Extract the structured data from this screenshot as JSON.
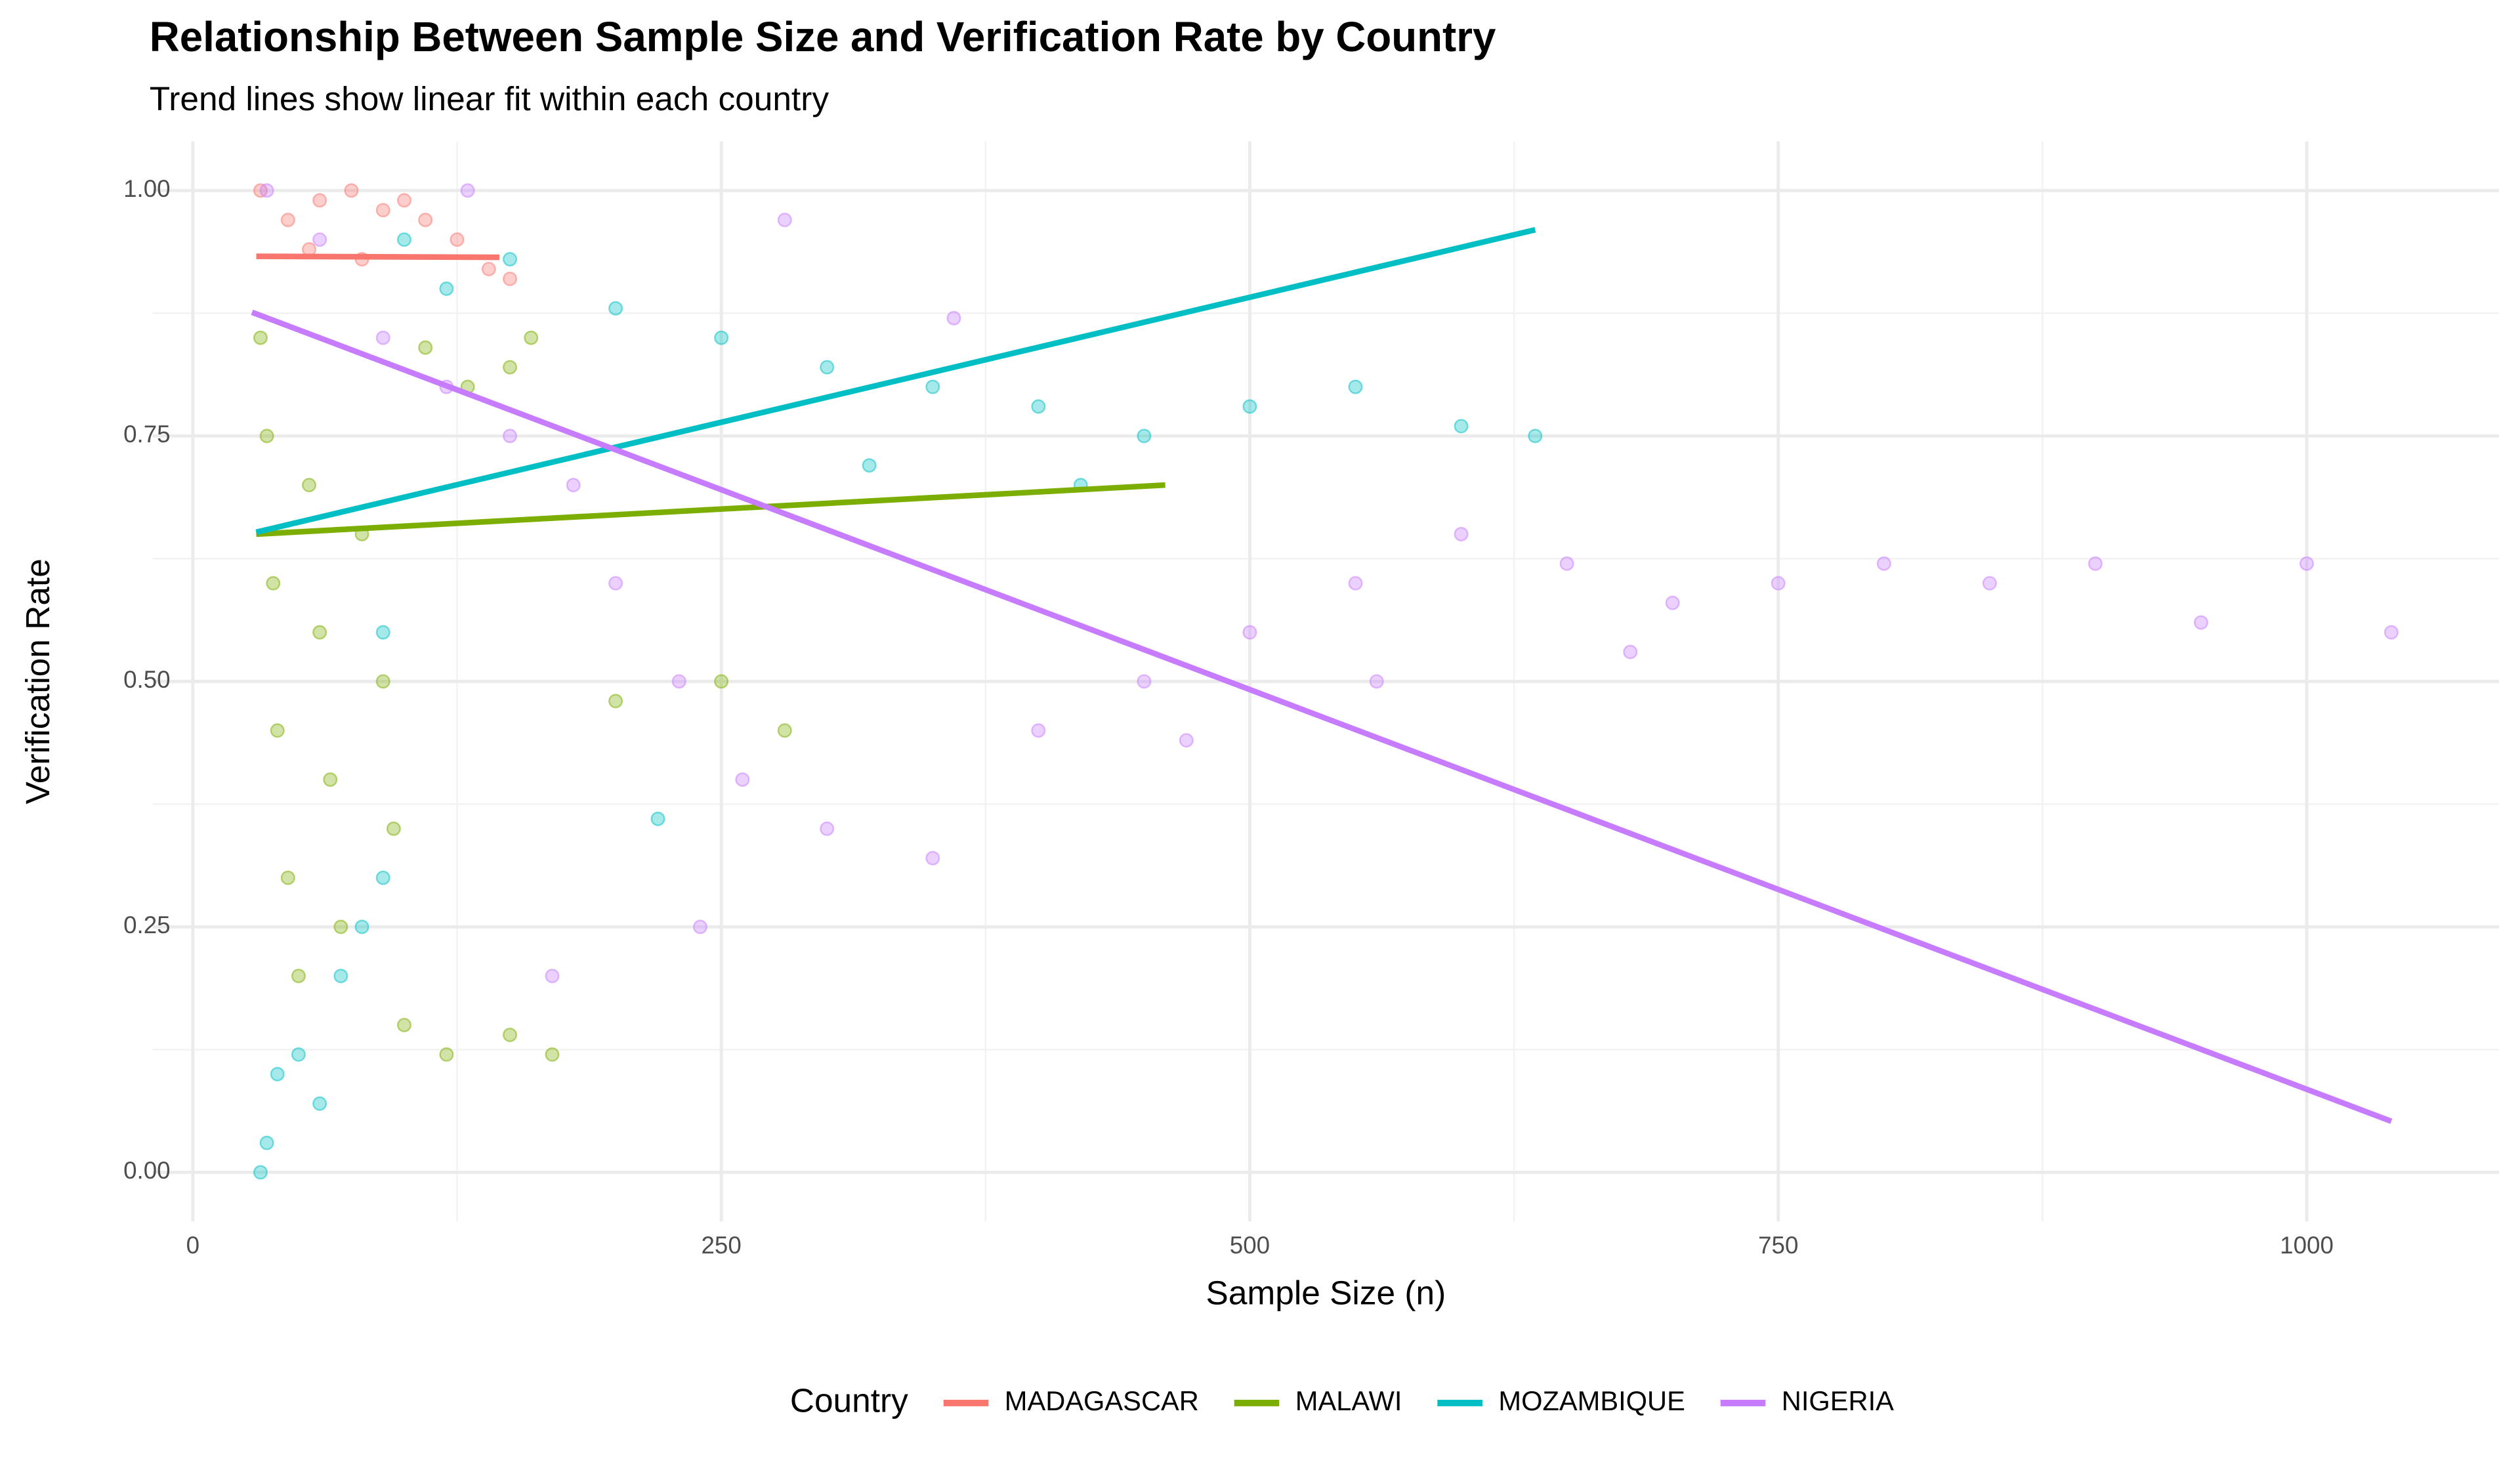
{
  "chart_data": {
    "type": "scatter",
    "title": "Relationship Between Sample Size and Verification Rate by Country",
    "subtitle": "Trend lines show linear fit within each country",
    "x_label": "Sample Size (n)",
    "y_label": "Verification Rate",
    "legend_title": "Country",
    "legend_position": "bottom",
    "grid": true,
    "xlim": [
      -19,
      1091
    ],
    "ylim": [
      -0.05,
      1.05
    ],
    "xticks": [
      0,
      250,
      500,
      750,
      1000
    ],
    "yticks": [
      {
        "value": 0,
        "label": "0.00"
      },
      {
        "value": 0.25,
        "label": "0.25"
      },
      {
        "value": 0.5,
        "label": "0.50"
      },
      {
        "value": 0.75,
        "label": "0.75"
      },
      {
        "value": 1,
        "label": "1.00"
      }
    ],
    "series": [
      {
        "name": "MADAGASCAR",
        "color": "#F8766D",
        "x": [
          32,
          45,
          60,
          75,
          90,
          100,
          110,
          125,
          140,
          150,
          55,
          80
        ],
        "values": [
          1.0,
          0.97,
          0.99,
          1.0,
          0.98,
          0.99,
          0.97,
          0.95,
          0.92,
          0.91,
          0.94,
          0.93
        ],
        "trend": {
          "x": [
            30,
            145
          ],
          "values": [
            0.933,
            0.932
          ]
        }
      },
      {
        "name": "MALAWI",
        "color": "#7CAE00",
        "x": [
          32,
          35,
          38,
          40,
          45,
          50,
          55,
          60,
          65,
          70,
          80,
          90,
          100,
          120,
          150,
          170,
          200,
          250,
          280,
          110,
          130,
          160,
          150,
          95
        ],
        "values": [
          0.85,
          0.75,
          0.6,
          0.45,
          0.3,
          0.2,
          0.7,
          0.55,
          0.4,
          0.25,
          0.65,
          0.5,
          0.15,
          0.12,
          0.14,
          0.12,
          0.48,
          0.5,
          0.45,
          0.84,
          0.8,
          0.85,
          0.82,
          0.35
        ],
        "trend": {
          "x": [
            30,
            460
          ],
          "values": [
            0.65,
            0.7
          ]
        }
      },
      {
        "name": "MOZAMBIQUE",
        "color": "#00BFC4",
        "x": [
          32,
          35,
          40,
          50,
          60,
          70,
          80,
          90,
          100,
          120,
          150,
          200,
          250,
          300,
          350,
          400,
          450,
          500,
          550,
          600,
          635,
          320,
          420,
          220,
          90
        ],
        "values": [
          0.0,
          0.03,
          0.1,
          0.12,
          0.07,
          0.2,
          0.25,
          0.3,
          0.95,
          0.9,
          0.93,
          0.88,
          0.85,
          0.82,
          0.8,
          0.78,
          0.75,
          0.78,
          0.8,
          0.76,
          0.75,
          0.72,
          0.7,
          0.36,
          0.55
        ],
        "trend": {
          "x": [
            30,
            635
          ],
          "values": [
            0.652,
            0.96
          ]
        }
      },
      {
        "name": "NIGERIA",
        "color": "#C77CFF",
        "x": [
          35,
          60,
          90,
          120,
          150,
          180,
          200,
          230,
          260,
          300,
          350,
          400,
          450,
          500,
          550,
          600,
          650,
          700,
          750,
          800,
          850,
          900,
          950,
          1000,
          1040,
          280,
          360,
          240,
          170,
          130,
          470,
          680,
          560
        ],
        "values": [
          1.0,
          0.95,
          0.85,
          0.8,
          0.75,
          0.7,
          0.6,
          0.5,
          0.4,
          0.35,
          0.32,
          0.45,
          0.5,
          0.55,
          0.6,
          0.65,
          0.62,
          0.58,
          0.6,
          0.62,
          0.6,
          0.62,
          0.56,
          0.62,
          0.55,
          0.97,
          0.87,
          0.25,
          0.2,
          1.0,
          0.44,
          0.53,
          0.5
        ],
        "trend": {
          "x": [
            28,
            1040
          ],
          "values": [
            0.876,
            0.052
          ]
        }
      }
    ]
  }
}
